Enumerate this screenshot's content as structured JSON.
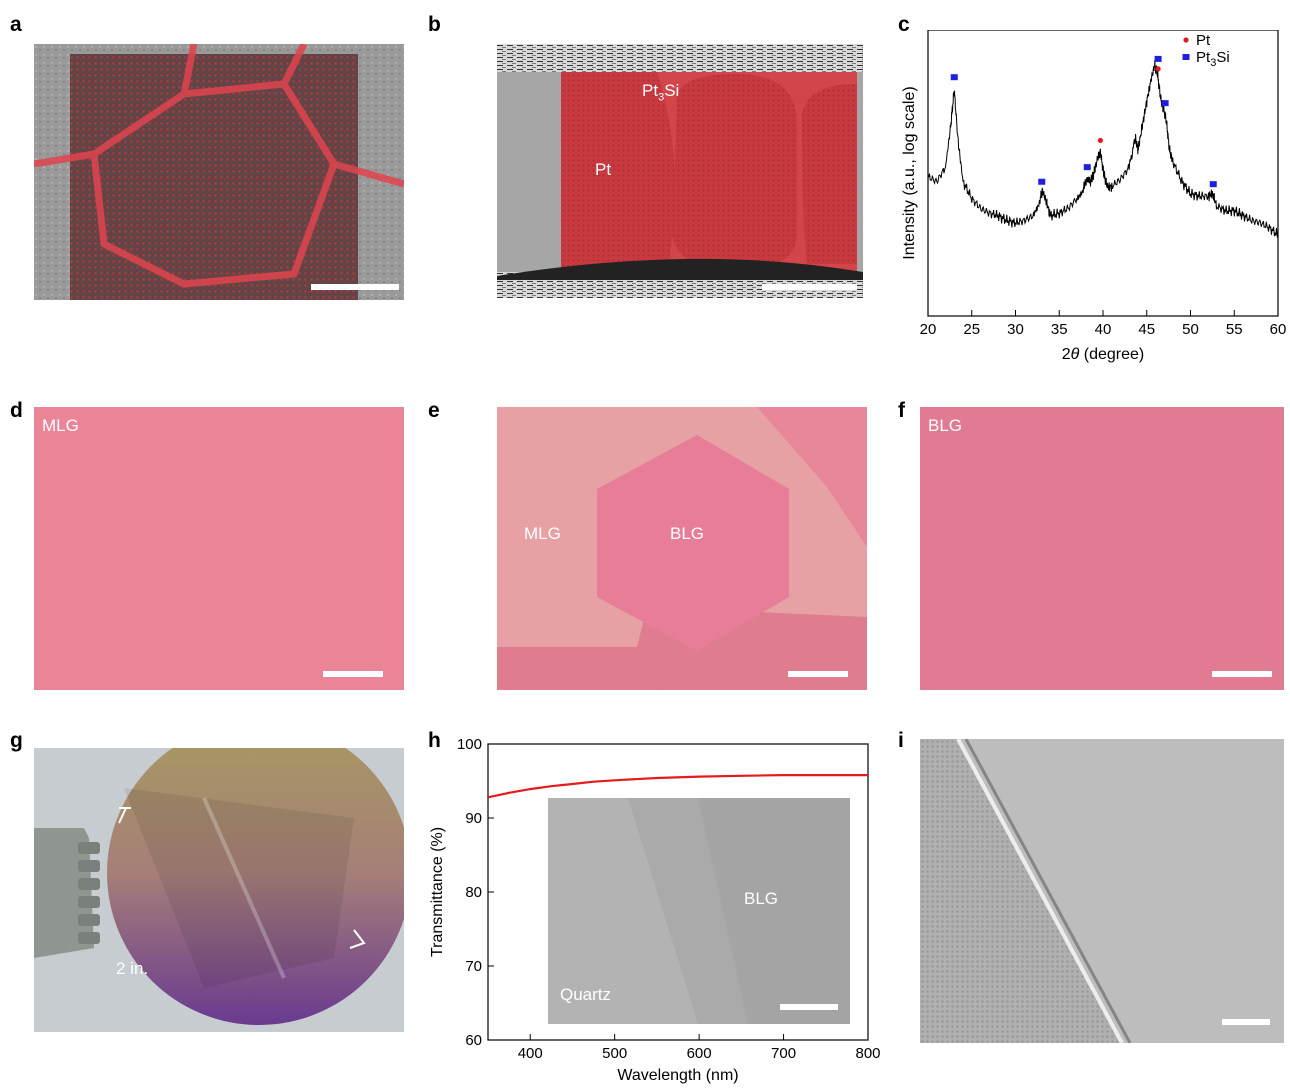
{
  "panels": {
    "a": {
      "label": "a"
    },
    "b": {
      "label": "b",
      "text_pt3si": "Pt",
      "text_pt3si_sub": "3",
      "text_pt3si_tail": "Si",
      "text_pt": "Pt"
    },
    "c": {
      "label": "c"
    },
    "d": {
      "label": "d",
      "text": "MLG"
    },
    "e": {
      "label": "e",
      "text_mlg": "MLG",
      "text_blg": "BLG"
    },
    "f": {
      "label": "f",
      "text": "BLG"
    },
    "g": {
      "label": "g",
      "text": "2 in."
    },
    "h": {
      "label": "h",
      "inset_blg": "BLG",
      "inset_quartz": "Quartz"
    },
    "i": {
      "label": "i"
    }
  },
  "colors": {
    "pink_film": "#e98597",
    "red_overlay": "#d23a3a",
    "line_red": "#e41a1c",
    "marker_red": "#e41a1c",
    "marker_blue": "#1f1fe0"
  },
  "chart_data": [
    {
      "type": "line",
      "panel": "c",
      "xlabel_prefix": "2",
      "xlabel_symbol": "θ",
      "xlabel_suffix": " (degree)",
      "ylabel": "Intensity (a.u., log scale)",
      "xlim": [
        20,
        60
      ],
      "xticks": [
        20,
        25,
        30,
        35,
        40,
        45,
        50,
        55,
        60
      ],
      "yticks": [],
      "legend": {
        "placement": "top-right",
        "entries": [
          {
            "name": "Pt",
            "marker": "circle",
            "color": "#e41a1c"
          },
          {
            "name": "Pt",
            "sub": "3",
            "tail": "Si",
            "marker": "square",
            "color": "#1f1fe0"
          }
        ]
      },
      "series": [
        {
          "x": [
            20,
            21,
            22,
            22.6,
            23.0,
            23.4,
            24,
            25,
            26,
            27,
            28,
            29,
            30,
            31,
            32,
            32.8,
            33.1,
            33.5,
            34,
            35,
            36,
            37,
            37.8,
            38.2,
            38.6,
            39.0,
            39.4,
            39.7,
            40.1,
            40.5,
            41,
            42,
            43,
            43.7,
            44.0,
            44.5,
            45,
            45.5,
            45.9,
            46.2,
            46.6,
            46.9,
            47.2,
            47.6,
            48,
            49,
            50,
            51,
            52,
            52.5,
            53,
            54,
            55,
            56,
            57,
            58,
            59,
            60
          ],
          "y": [
            0.54,
            0.52,
            0.58,
            0.75,
            0.9,
            0.7,
            0.52,
            0.45,
            0.41,
            0.39,
            0.38,
            0.36,
            0.35,
            0.36,
            0.38,
            0.45,
            0.48,
            0.44,
            0.38,
            0.39,
            0.41,
            0.45,
            0.5,
            0.53,
            0.52,
            0.56,
            0.62,
            0.64,
            0.55,
            0.5,
            0.5,
            0.53,
            0.58,
            0.7,
            0.65,
            0.75,
            0.85,
            0.94,
            1.0,
            0.97,
            0.86,
            0.82,
            0.78,
            0.65,
            0.6,
            0.52,
            0.47,
            0.46,
            0.46,
            0.47,
            0.42,
            0.4,
            0.4,
            0.38,
            0.36,
            0.35,
            0.33,
            0.3
          ]
        }
      ],
      "pt_peaks": [
        39.7,
        46.3
      ],
      "pt3si_peaks": [
        23.0,
        33.0,
        38.2,
        46.3,
        47.1,
        52.6
      ]
    },
    {
      "type": "line",
      "panel": "h",
      "xlabel": "Wavelength (nm)",
      "ylabel": "Transmittance (%)",
      "xlim": [
        350,
        800
      ],
      "ylim": [
        60,
        100
      ],
      "xticks": [
        400,
        500,
        600,
        700,
        800
      ],
      "yticks": [
        60,
        70,
        80,
        90,
        100
      ],
      "series": [
        {
          "x": [
            350,
            375,
            400,
            425,
            450,
            475,
            500,
            550,
            600,
            650,
            700,
            750,
            800
          ],
          "y": [
            92.8,
            93.4,
            93.9,
            94.3,
            94.6,
            94.9,
            95.1,
            95.4,
            95.6,
            95.7,
            95.8,
            95.8,
            95.8
          ],
          "color": "#e41a1c"
        }
      ]
    }
  ]
}
